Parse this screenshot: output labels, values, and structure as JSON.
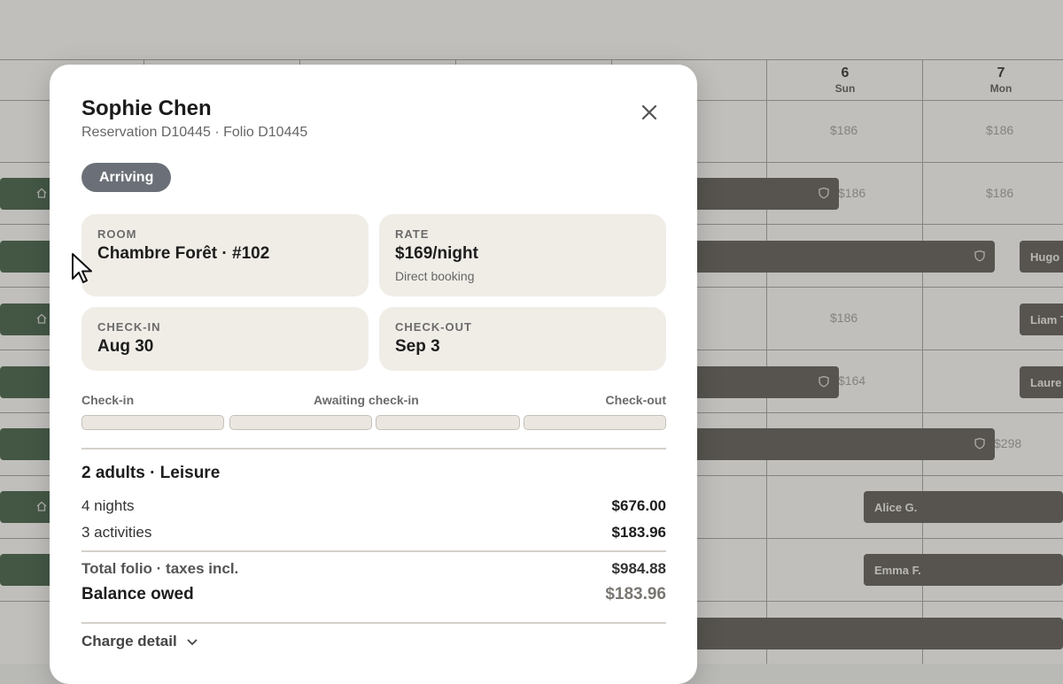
{
  "calendar": {
    "days": [
      {
        "num": "6",
        "weekday": "Sun"
      },
      {
        "num": "7",
        "weekday": "Mon"
      }
    ],
    "prices": [
      "$186",
      "$186",
      "$186",
      "$186",
      "$186",
      "$164",
      "$298",
      "$186"
    ],
    "bookings": [
      "Hugo",
      "Liam T",
      "Laure",
      "Alice G.",
      "Emma F."
    ]
  },
  "modal": {
    "guest_name": "Sophie Chen",
    "subtitle": "Reservation D10445 · Folio D10445",
    "status_badge": "Arriving",
    "room": {
      "label": "ROOM",
      "value": "Chambre Forêt · #102"
    },
    "rate": {
      "label": "RATE",
      "value": "$169/night",
      "sub": "Direct booking"
    },
    "checkin": {
      "label": "CHECK-IN",
      "value": "Aug 30"
    },
    "checkout": {
      "label": "CHECK-OUT",
      "value": "Sep 3"
    },
    "progress": {
      "start_label": "Check-in",
      "current_label": "Awaiting check-in",
      "end_label": "Check-out",
      "segments": 4,
      "completed": 0
    },
    "guests": "2 adults · Leisure",
    "lines": [
      {
        "label": "4 nights",
        "amount": "$676.00"
      },
      {
        "label": "3 activities",
        "amount": "$183.96"
      }
    ],
    "total": {
      "label": "Total folio · taxes incl.",
      "amount": "$984.88"
    },
    "balance": {
      "label": "Balance owed",
      "amount": "$183.96"
    },
    "charge_detail": "Charge detail"
  },
  "icons": {
    "close": "close-icon",
    "chevron": "chevron-down-icon",
    "shield": "shield-icon",
    "home": "home-icon",
    "cursor": "mouse-pointer-icon"
  },
  "colors": {
    "badge": "#6b7078",
    "card": "#f0ede7",
    "booking_bar": "#5a5650",
    "booking_bar_green": "#3e5a42"
  }
}
